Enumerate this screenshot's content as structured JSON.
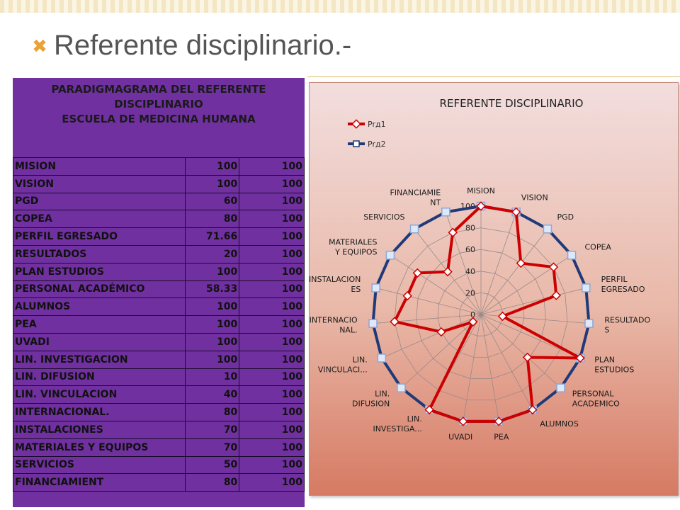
{
  "slide": {
    "bullet_icon": "x-mark-bullet-icon",
    "title": "Referente disciplinario.-"
  },
  "table": {
    "header_lines": [
      "PARADIGMAGRAMA DEL REFERENTE",
      "DISCIPLINARIO",
      "ESCUELA DE MEDICINA HUMANA"
    ],
    "rows": [
      {
        "label": " MISION",
        "v1": "100",
        "v2": "100"
      },
      {
        "label": "VISION",
        "v1": "100",
        "v2": "100"
      },
      {
        "label": "PGD",
        "v1": "60",
        "v2": "100"
      },
      {
        "label": "COPEA",
        "v1": "80",
        "v2": "100"
      },
      {
        "label": "PERFIL  EGRESADO",
        "v1": "71.66",
        "v2": "100"
      },
      {
        "label": "RESULTADOS",
        "v1": "20",
        "v2": "100"
      },
      {
        "label": "PLAN ESTUDIOS",
        "v1": "100",
        "v2": "100"
      },
      {
        "label": "PERSONAL ACADÉMICO",
        "v1": "58.33",
        "v2": "100"
      },
      {
        "label": "ALUMNOS",
        "v1": "100",
        "v2": "100"
      },
      {
        "label": "PEA",
        "v1": "100",
        "v2": "100"
      },
      {
        "label": "UVADI",
        "v1": "100",
        "v2": "100"
      },
      {
        "label": "LIN. INVESTIGACION",
        "v1": "100",
        "v2": "100"
      },
      {
        "label": "LIN. DIFUSION",
        "v1": "10",
        "v2": "100"
      },
      {
        "label": "LIN. VINCULACION",
        "v1": "40",
        "v2": "100"
      },
      {
        "label": "INTERNACIONAL.",
        "v1": "80",
        "v2": "100"
      },
      {
        "label": "INSTALACIONES",
        "v1": "70",
        "v2": "100"
      },
      {
        "label": "MATERIALES  Y EQUIPOS",
        "v1": "70",
        "v2": "100"
      },
      {
        "label": "SERVICIOS",
        "v1": "50",
        "v2": "100"
      },
      {
        "label": "FINANCIAMIENT",
        "v1": "80",
        "v2": "100"
      }
    ]
  },
  "chart_data": {
    "type": "radar",
    "title": "REFERENTE DISCIPLINARIO",
    "categories": [
      "MISION",
      "VISION",
      "PGD",
      "COPEA",
      "PERFIL\nEGRESADO",
      "RESULTADO\nS",
      "PLAN\nESTUDIOS",
      "PERSONAL\nACADEMICO",
      "ALUMNOS",
      "PEA",
      "UVADI",
      "LIN.\nINVESTIGA...",
      "LIN.\nDIFUSION",
      "LIN.\nVINCULACI...",
      "INTERNACIO\nNAL.",
      "INSTALACION\nES",
      "MATERIALES\nY EQUIPOS",
      "SERVICIOS",
      "FINANCIAMIE\nNT"
    ],
    "series": [
      {
        "name": "Prд1",
        "color": "#cc0000",
        "values": [
          100,
          100,
          60,
          80,
          71.66,
          20,
          100,
          58.33,
          100,
          100,
          100,
          100,
          10,
          40,
          80,
          70,
          70,
          50,
          80
        ]
      },
      {
        "name": "Prд2",
        "color": "#1f3a78",
        "values": [
          100,
          100,
          100,
          100,
          100,
          100,
          100,
          100,
          100,
          100,
          100,
          100,
          100,
          100,
          100,
          100,
          100,
          100,
          100
        ]
      }
    ],
    "ticks": [
      "0",
      "20",
      "40",
      "60",
      "80",
      "100"
    ],
    "rmax": 100,
    "grid": true,
    "legend": "top-left"
  },
  "colors": {
    "table_bg": "#7030a0",
    "series1": "#cc0000",
    "series2": "#1f3a78",
    "accent": "#e8a23a"
  }
}
